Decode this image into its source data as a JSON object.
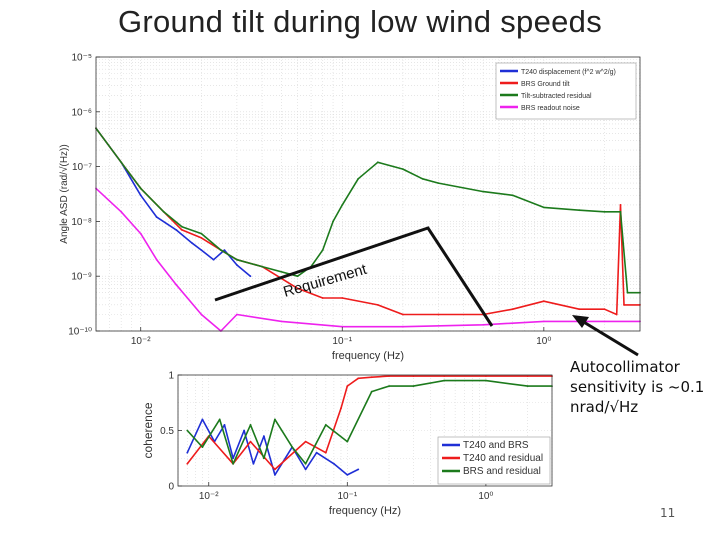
{
  "slide": {
    "title": "Ground tilt during low wind speeds",
    "annotation_lines": [
      "Autocollimator",
      "sensitivity is ~0.1",
      "nrad/√Hz"
    ],
    "page_number": "11"
  },
  "colors": {
    "blue": "#1f2fd6",
    "red": "#ee1c1c",
    "green": "#1c7a1c",
    "magenta": "#ee22ee",
    "grid": "#d8d8d8"
  },
  "chart_data": [
    {
      "type": "line",
      "xlabel": "frequency (Hz)",
      "ylabel": "Angle ASD (rad/√(Hz))",
      "xscale": "log",
      "yscale": "log",
      "xlim": [
        0.006,
        3
      ],
      "ylim": [
        1e-10,
        1e-05
      ],
      "x_tick_labels": [
        {
          "value": 0.01,
          "label": "10⁻²"
        },
        {
          "value": 0.1,
          "label": "10⁻¹"
        },
        {
          "value": 1,
          "label": "10⁰"
        }
      ],
      "y_tick_labels": [
        {
          "value": 1e-05,
          "label": "10⁻⁵"
        },
        {
          "value": 1e-06,
          "label": "10⁻⁶"
        },
        {
          "value": 1e-07,
          "label": "10⁻⁷"
        },
        {
          "value": 1e-08,
          "label": "10⁻⁸"
        },
        {
          "value": 1e-09,
          "label": "10⁻⁹"
        },
        {
          "value": 1e-10,
          "label": "10⁻¹⁰"
        }
      ],
      "grid": true,
      "legend_position": "top-right",
      "series": [
        {
          "name": "T240 displacement (f^2 w^2/g)",
          "color": "#1f2fd6",
          "x": [
            0.006,
            0.008,
            0.01,
            0.012,
            0.015,
            0.018,
            0.02,
            0.023,
            0.026,
            0.03,
            0.035
          ],
          "y": [
            5e-07,
            1.2e-07,
            3e-08,
            1.2e-08,
            7e-09,
            4e-09,
            3e-09,
            2e-09,
            3e-09,
            1.6e-09,
            1e-09
          ]
        },
        {
          "name": "BRS Ground tilt",
          "color": "#ee1c1c",
          "x": [
            0.006,
            0.008,
            0.01,
            0.013,
            0.016,
            0.02,
            0.025,
            0.03,
            0.04,
            0.06,
            0.08,
            0.1,
            0.15,
            0.2,
            0.3,
            0.5,
            0.7,
            1.0,
            1.5,
            2.0,
            2.3,
            2.4,
            2.5,
            3.0
          ],
          "y": [
            5e-07,
            1.2e-07,
            4e-08,
            1.5e-08,
            7e-09,
            5e-09,
            3e-09,
            2e-09,
            1.5e-09,
            6e-10,
            4e-10,
            4e-10,
            3e-10,
            2e-10,
            2e-10,
            2e-10,
            2.5e-10,
            3.5e-10,
            2.5e-10,
            2.5e-10,
            2e-10,
            2e-08,
            3e-10,
            3e-10
          ]
        },
        {
          "name": "Tilt-subtracted residual",
          "color": "#1c7a1c",
          "x": [
            0.006,
            0.008,
            0.01,
            0.013,
            0.016,
            0.02,
            0.025,
            0.03,
            0.04,
            0.06,
            0.07,
            0.08,
            0.09,
            0.1,
            0.12,
            0.15,
            0.18,
            0.2,
            0.25,
            0.3,
            0.5,
            0.7,
            1.0,
            1.5,
            2.0,
            2.4,
            2.6,
            3.0
          ],
          "y": [
            5e-07,
            1.2e-07,
            4e-08,
            1.5e-08,
            8e-09,
            6e-09,
            3e-09,
            2e-09,
            1.5e-09,
            1e-09,
            1.5e-09,
            3e-09,
            1e-08,
            2e-08,
            6e-08,
            1.2e-07,
            1e-07,
            9e-08,
            6e-08,
            5e-08,
            3.5e-08,
            3e-08,
            1.8e-08,
            1.6e-08,
            1.5e-08,
            1.5e-08,
            5e-10,
            5e-10
          ]
        },
        {
          "name": "BRS readout noise",
          "color": "#ee22ee",
          "x": [
            0.006,
            0.008,
            0.01,
            0.012,
            0.015,
            0.02,
            0.025,
            0.03,
            0.05,
            0.1,
            0.2,
            0.5,
            1.0,
            2.0,
            3.0
          ],
          "y": [
            4e-08,
            1.5e-08,
            6e-09,
            2e-09,
            7e-10,
            2e-10,
            1e-10,
            2e-10,
            1.5e-10,
            1.2e-10,
            1.2e-10,
            1.3e-10,
            1.5e-10,
            1.5e-10,
            1.5e-10
          ]
        }
      ],
      "annotations": [
        {
          "text": "Requirement"
        }
      ]
    },
    {
      "type": "line",
      "xlabel": "frequency (Hz)",
      "ylabel": "coherence",
      "xscale": "log",
      "xlim": [
        0.006,
        3
      ],
      "ylim": [
        0,
        1
      ],
      "x_tick_labels": [
        {
          "value": 0.01,
          "label": "10⁻²"
        },
        {
          "value": 0.1,
          "label": "10⁻¹"
        },
        {
          "value": 1,
          "label": "10⁰"
        }
      ],
      "y_tick_labels": [
        {
          "value": 0,
          "label": "0"
        },
        {
          "value": 0.5,
          "label": "0.5"
        },
        {
          "value": 1,
          "label": "1"
        }
      ],
      "grid": true,
      "legend_position": "bottom-right",
      "series": [
        {
          "name": "T240 and BRS",
          "color": "#1f2fd6",
          "x": [
            0.007,
            0.009,
            0.011,
            0.013,
            0.015,
            0.018,
            0.021,
            0.025,
            0.03,
            0.04,
            0.05,
            0.06,
            0.08,
            0.1,
            0.12
          ],
          "y": [
            0.3,
            0.6,
            0.4,
            0.55,
            0.25,
            0.5,
            0.2,
            0.45,
            0.1,
            0.35,
            0.15,
            0.3,
            0.2,
            0.1,
            0.15
          ]
        },
        {
          "name": "T240 and residual",
          "color": "#ee1c1c",
          "x": [
            0.007,
            0.01,
            0.015,
            0.02,
            0.03,
            0.05,
            0.07,
            0.09,
            0.1,
            0.12,
            0.15,
            0.2,
            0.3,
            0.5,
            1.0,
            2.0,
            3.0
          ],
          "y": [
            0.2,
            0.45,
            0.2,
            0.4,
            0.15,
            0.4,
            0.3,
            0.7,
            0.9,
            0.97,
            0.98,
            0.99,
            0.99,
            0.99,
            0.99,
            0.99,
            0.99
          ]
        },
        {
          "name": "BRS and residual",
          "color": "#1c7a1c",
          "x": [
            0.007,
            0.009,
            0.012,
            0.015,
            0.02,
            0.025,
            0.03,
            0.04,
            0.05,
            0.07,
            0.1,
            0.15,
            0.2,
            0.3,
            0.5,
            1.0,
            2.0,
            3.0
          ],
          "y": [
            0.5,
            0.35,
            0.6,
            0.2,
            0.55,
            0.25,
            0.6,
            0.35,
            0.2,
            0.55,
            0.4,
            0.85,
            0.9,
            0.9,
            0.95,
            0.95,
            0.9,
            0.9
          ]
        }
      ]
    }
  ]
}
